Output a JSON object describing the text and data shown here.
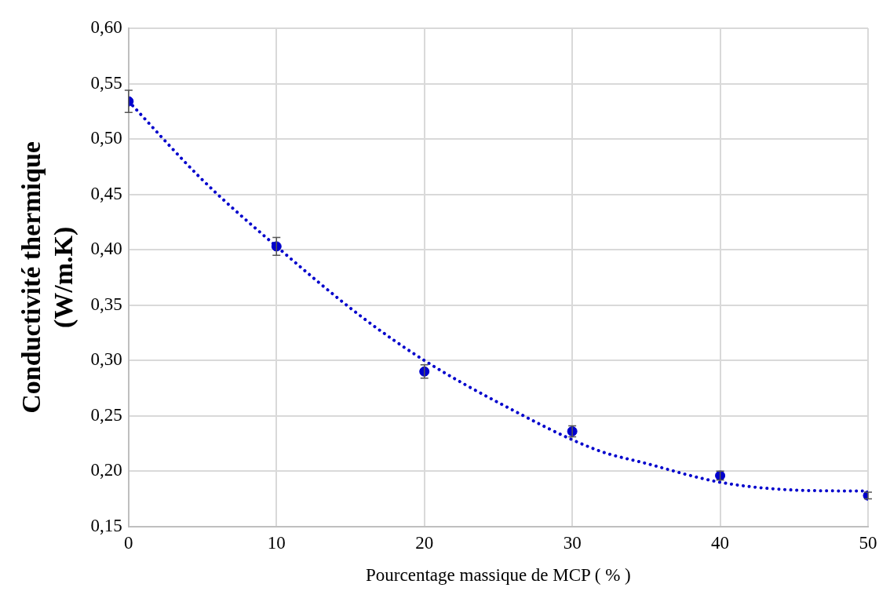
{
  "chart_data": {
    "type": "scatter",
    "xlabel": "Pourcentage massique de MCP ( % )",
    "ylabel": "Conductivité thermique\n(W/m.K)",
    "x": [
      0,
      10,
      20,
      30,
      40,
      50
    ],
    "series": [
      {
        "color": "#0000cc",
        "values": [
          0.534,
          0.403,
          0.29,
          0.236,
          0.196,
          0.178
        ],
        "errors": [
          0.01,
          0.008,
          0.006,
          0.005,
          0.004,
          0.003
        ],
        "marker": "circle"
      },
      {
        "type": "line",
        "color": "#0000cc",
        "line_style": "dotted",
        "marker": "none",
        "x": [
          0,
          5,
          10,
          15.8,
          20,
          25,
          31.7,
          35,
          40,
          45,
          50
        ],
        "values": [
          0.534,
          0.463,
          0.403,
          0.339,
          0.3,
          0.262,
          0.219,
          0.207,
          0.19,
          0.183,
          0.182
        ]
      }
    ],
    "xlim": [
      0,
      50
    ],
    "xticks": [
      0,
      10,
      20,
      30,
      40,
      50
    ],
    "ylim": [
      0.15,
      0.6
    ],
    "yticks": [
      {
        "value": 0.15,
        "label": "0,15"
      },
      {
        "value": 0.2,
        "label": "0,20"
      },
      {
        "value": 0.25,
        "label": "0,25"
      },
      {
        "value": 0.3,
        "label": "0,30"
      },
      {
        "value": 0.35,
        "label": "0,35"
      },
      {
        "value": 0.4,
        "label": "0,40"
      },
      {
        "value": 0.45,
        "label": "0,45"
      },
      {
        "value": 0.5,
        "label": "0,50"
      },
      {
        "value": 0.55,
        "label": "0,55"
      },
      {
        "value": 0.6,
        "label": "0,60"
      }
    ],
    "grid": true,
    "legend": false
  }
}
